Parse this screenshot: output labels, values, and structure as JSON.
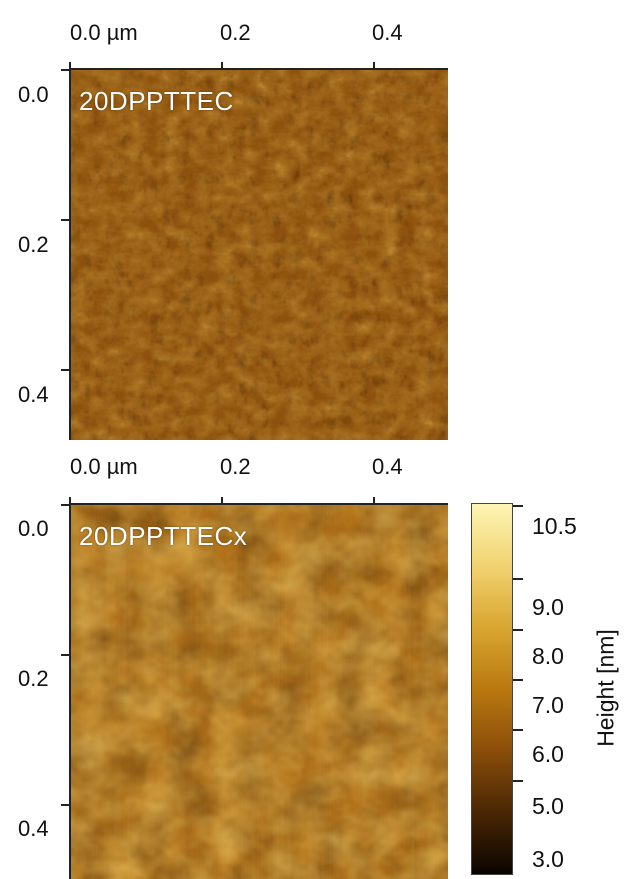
{
  "panels": [
    {
      "sample_label": "20DPPTTEC",
      "x_ticks": [
        "0.0 µm",
        "0.2",
        "0.4"
      ],
      "y_ticks": [
        "0.0",
        "0.2",
        "0.4"
      ]
    },
    {
      "sample_label": "20DPPTTECx",
      "x_ticks": [
        "0.0 µm",
        "0.2",
        "0.4"
      ],
      "y_ticks": [
        "0.0",
        "0.2",
        "0.4"
      ]
    }
  ],
  "colorbar": {
    "title": "Height [nm]",
    "labels": [
      "10.5",
      "9.0",
      "8.0",
      "7.0",
      "6.0",
      "5.0",
      "3.0"
    ],
    "colors": [
      "#0a0500",
      "#4a2604",
      "#8a4e0a",
      "#b9790f",
      "#d9a630",
      "#f1d271",
      "#fdf6b4"
    ]
  }
}
